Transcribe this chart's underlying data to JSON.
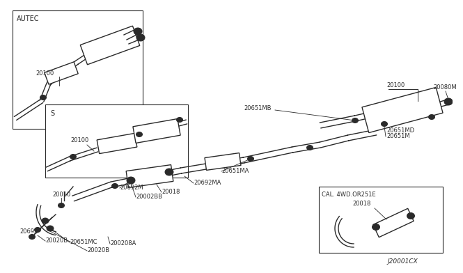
{
  "bg_color": "#ffffff",
  "line_color": "#2a2a2a",
  "diagram_id": "J20001CX",
  "labels": {
    "autec_box": "AUTEC",
    "s_box": "S",
    "cal_box": "CAL. 4WD.OR251E",
    "20100_autec": "20100",
    "20100_s": "20100",
    "20100_right": "20100",
    "20080M": "20080M",
    "20651MB": "20651MB",
    "20651MA": "20651MA",
    "20651M": "20651M",
    "20651MD": "20651MD",
    "20651MC": "20651MC",
    "20692M": "20692M",
    "20692MA": "20692MA",
    "20018": "20018",
    "20018_cal": "20018",
    "20010": "20010",
    "20691": "20691",
    "20020B_a": "20020B",
    "20020B_b": "20020B",
    "200208A": "200208A",
    "20002BB": "20002BB"
  }
}
